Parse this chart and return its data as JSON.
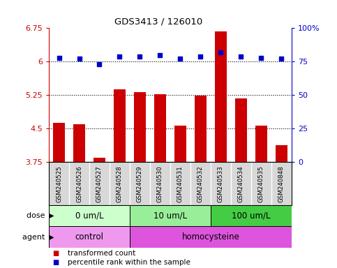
{
  "title": "GDS3413 / 126010",
  "samples": [
    "GSM240525",
    "GSM240526",
    "GSM240527",
    "GSM240528",
    "GSM240529",
    "GSM240530",
    "GSM240531",
    "GSM240532",
    "GSM240533",
    "GSM240534",
    "GSM240535",
    "GSM240848"
  ],
  "bar_values": [
    4.63,
    4.6,
    3.85,
    5.38,
    5.32,
    5.27,
    4.57,
    5.24,
    6.67,
    5.18,
    4.57,
    4.13
  ],
  "dot_values": [
    78,
    77,
    73,
    79,
    79,
    80,
    77,
    79,
    82,
    79,
    78,
    77
  ],
  "bar_color": "#cc0000",
  "dot_color": "#0000cc",
  "ylim_left": [
    3.75,
    6.75
  ],
  "ylim_right": [
    0,
    100
  ],
  "yticks_left": [
    3.75,
    4.5,
    5.25,
    6.0,
    6.75
  ],
  "ytick_labels_left": [
    "3.75",
    "4.5",
    "5.25",
    "6",
    "6.75"
  ],
  "yticks_right": [
    0,
    25,
    50,
    75,
    100
  ],
  "ytick_labels_right": [
    "0",
    "25",
    "50",
    "75",
    "100%"
  ],
  "hlines": [
    4.5,
    5.25,
    6.0
  ],
  "dose_groups": [
    {
      "label": "0 um/L",
      "start": 0,
      "end": 4,
      "color": "#ccffcc"
    },
    {
      "label": "10 um/L",
      "start": 4,
      "end": 8,
      "color": "#99ee99"
    },
    {
      "label": "100 um/L",
      "start": 8,
      "end": 12,
      "color": "#44cc44"
    }
  ],
  "agent_groups": [
    {
      "label": "control",
      "start": 0,
      "end": 4,
      "color": "#ee99ee"
    },
    {
      "label": "homocysteine",
      "start": 4,
      "end": 12,
      "color": "#dd55dd"
    }
  ],
  "dose_label": "dose",
  "agent_label": "agent",
  "legend_bar": "transformed count",
  "legend_dot": "percentile rank within the sample",
  "left_axis_color": "#cc0000",
  "right_axis_color": "#0000cc",
  "bg_color": "#ffffff",
  "sample_bg_color": "#d8d8d8"
}
